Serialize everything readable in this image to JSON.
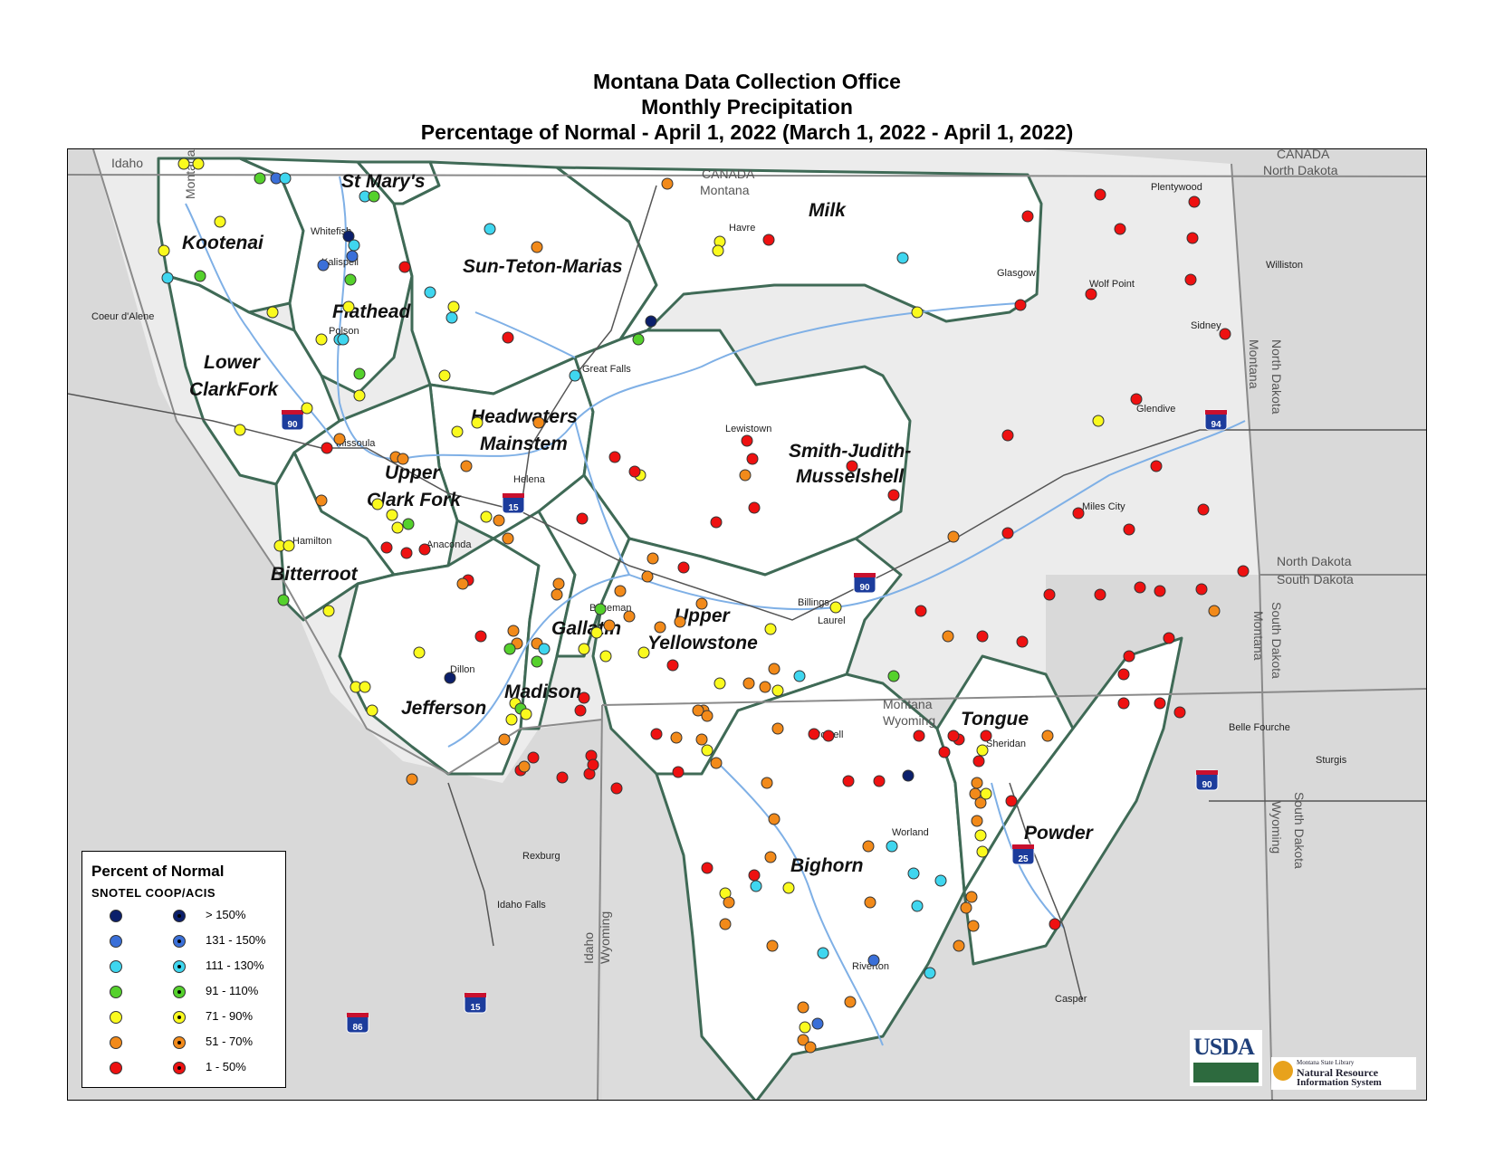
{
  "title": {
    "line1": "Montana Data Collection Office",
    "line2": "Monthly Precipitation",
    "line3": "Percentage of Normal - April 1, 2022 (March 1, 2022 - April 1, 2022)"
  },
  "region_labels": [
    "CANADA",
    "Montana",
    "CANADA",
    "North Dakota",
    "Idaho",
    "Montana",
    "North Dakota",
    "Montana",
    "North Dakota",
    "South Dakota",
    "South Dakota",
    "Montana",
    "Montana",
    "Wyoming",
    "South Dakota",
    "Wyoming",
    "Idaho",
    "Wyoming"
  ],
  "basins": [
    "St Mary's",
    "Kootenai",
    "Flathead",
    "Sun-Teton-Marias",
    "Milk",
    "Lower",
    "ClarkFork",
    "Headwaters",
    "Mainstem",
    "Upper",
    "Clark Fork",
    "Smith-Judith-",
    "Musselshell",
    "Bitterroot",
    "Upper",
    "Yellowstone",
    "Gallatin",
    "Madison",
    "Jefferson",
    "Tongue",
    "Bighorn",
    "Powder"
  ],
  "cities": [
    "Whitefish",
    "Kalispell",
    "Polson",
    "Havre",
    "Glasgow",
    "Plentywood",
    "Wolf Point",
    "Williston",
    "Sidney",
    "Great Falls",
    "Lewistown",
    "Glendive",
    "Missoula",
    "Helena",
    "Miles City",
    "Hamilton",
    "Anaconda",
    "Bozeman",
    "Billings",
    "Laurel",
    "Dillon",
    "Coeur d'Alene",
    "Belle Fourche",
    "Sturgis",
    "Powell",
    "Sheridan",
    "Worland",
    "Rexburg",
    "Idaho Falls",
    "Riverton",
    "Casper"
  ],
  "interstates": [
    "90",
    "15",
    "94",
    "90",
    "90",
    "25",
    "15",
    "86"
  ],
  "legend": {
    "title": "Percent of Normal",
    "subtitle": "SNOTEL  COOP/ACIS",
    "classes": [
      {
        "label": "> 150%",
        "color": "#0b1f6b"
      },
      {
        "label": "131 - 150%",
        "color": "#3a6fd8"
      },
      {
        "label": "111 - 130%",
        "color": "#3fd6ef"
      },
      {
        "label": "91 - 110%",
        "color": "#55d12c"
      },
      {
        "label": "71 - 90%",
        "color": "#fafa1e"
      },
      {
        "label": "51 - 70%",
        "color": "#f28a1a"
      },
      {
        "label": "1 - 50%",
        "color": "#ee1111"
      }
    ]
  },
  "logos": {
    "usda": "USDA",
    "msl_line1": "Montana State Library",
    "msl_line2": "Natural Resource",
    "msl_line3": "Information System"
  }
}
